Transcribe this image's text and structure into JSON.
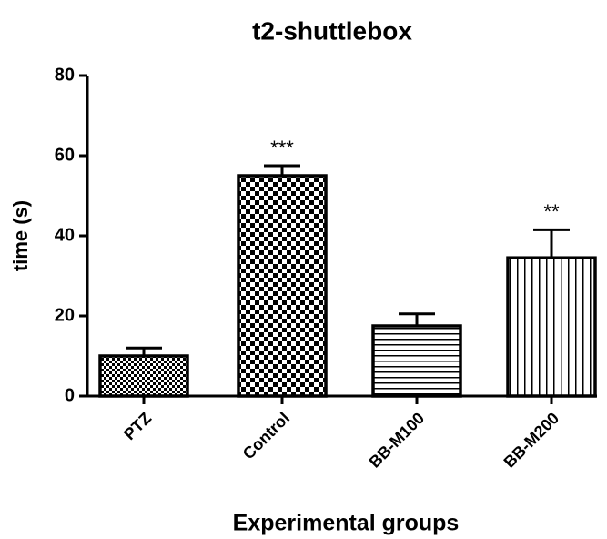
{
  "chart_data": {
    "type": "bar",
    "title": "t2-shuttlebox",
    "x_label": "Experimental groups",
    "y_label": "time (s)",
    "categories": [
      "PTZ",
      "Control",
      "BB-M100",
      "BB-M200"
    ],
    "values": [
      10,
      55,
      17.5,
      34.5
    ],
    "errors": [
      2,
      2.5,
      3,
      7
    ],
    "annotations": [
      null,
      "***",
      null,
      "**"
    ],
    "patterns": [
      "checker-fine",
      "checker",
      "horizontal",
      "vertical"
    ],
    "color": "#000000",
    "ylim": [
      0,
      80
    ],
    "yticks": [
      0,
      20,
      40,
      60,
      80
    ],
    "grid": false
  }
}
